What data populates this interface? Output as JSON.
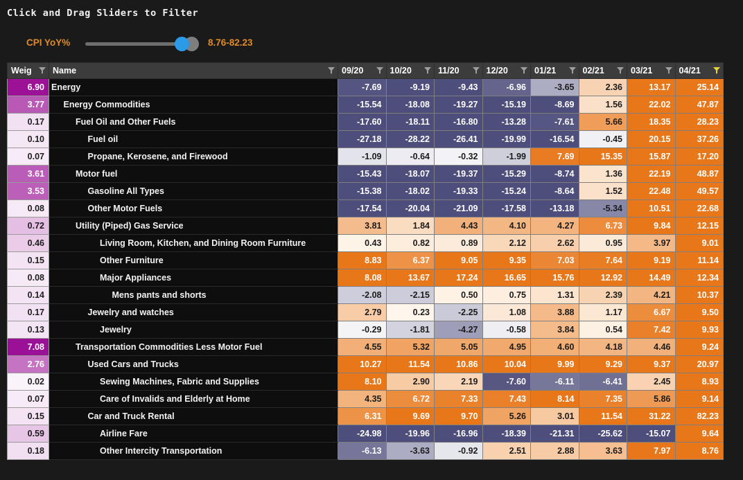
{
  "title": "Click and Drag Sliders to Filter",
  "slider": {
    "label": "CPI YoY%",
    "range_label": "8.76-82.23",
    "handles": [
      "blue-handle",
      "gray-handle"
    ]
  },
  "colors": {
    "page_bg": "#1a1a1a",
    "accent_orange_text": "#e18a28",
    "slider_blue": "#2b9be8",
    "slider_gray": "#7e7e7e",
    "header_bg": "#3c3c3c",
    "positive_max": "#e8771c",
    "negative_max": "#4e4e7c",
    "weight_max": "#9a1096",
    "active_filter_yellow": "#e9d23d",
    "inactive_filter_gray": "#9e9e9e"
  },
  "icons": {
    "filter": "funnel"
  },
  "table": {
    "weight_header": "Weig",
    "name_header": "Name",
    "months": [
      "09/20",
      "10/20",
      "11/20",
      "12/20",
      "01/21",
      "02/21",
      "03/21",
      "04/21"
    ],
    "active_filter_month": "04/21",
    "rows": [
      {
        "weight": 6.9,
        "name": "Energy",
        "indent": 0,
        "values": [
          -7.69,
          -9.19,
          -9.43,
          -6.96,
          -3.65,
          2.36,
          13.17,
          25.14
        ]
      },
      {
        "weight": 3.77,
        "name": "Energy Commodities",
        "indent": 1,
        "values": [
          -15.54,
          -18.08,
          -19.27,
          -15.19,
          -8.69,
          1.56,
          22.02,
          47.87
        ]
      },
      {
        "weight": 0.17,
        "name": "Fuel Oil and Other Fuels",
        "indent": 2,
        "values": [
          -17.6,
          -18.11,
          -16.8,
          -13.28,
          -7.61,
          5.66,
          18.35,
          28.23
        ]
      },
      {
        "weight": 0.1,
        "name": "Fuel oil",
        "indent": 3,
        "values": [
          -27.18,
          -28.22,
          -26.41,
          -19.99,
          -16.54,
          -0.45,
          20.15,
          37.26
        ]
      },
      {
        "weight": 0.07,
        "name": "Propane, Kerosene, and Firewood",
        "indent": 3,
        "values": [
          -1.09,
          -0.64,
          -0.32,
          -1.99,
          7.69,
          15.35,
          15.87,
          17.2
        ]
      },
      {
        "weight": 3.61,
        "name": "Motor fuel",
        "indent": 2,
        "values": [
          -15.43,
          -18.07,
          -19.37,
          -15.29,
          -8.74,
          1.36,
          22.19,
          48.87
        ]
      },
      {
        "weight": 3.53,
        "name": "Gasoline All Types",
        "indent": 3,
        "values": [
          -15.38,
          -18.02,
          -19.33,
          -15.24,
          -8.64,
          1.52,
          22.48,
          49.57
        ]
      },
      {
        "weight": 0.08,
        "name": "Other Motor Fuels",
        "indent": 3,
        "values": [
          -17.54,
          -20.04,
          -21.09,
          -17.58,
          -13.18,
          -5.34,
          10.51,
          22.68
        ]
      },
      {
        "weight": 0.72,
        "name": "Utility (Piped) Gas Service",
        "indent": 2,
        "values": [
          3.81,
          1.84,
          4.43,
          4.1,
          4.27,
          6.73,
          9.84,
          12.15
        ]
      },
      {
        "weight": 0.46,
        "name": "Living Room, Kitchen, and Dining Room Furniture",
        "indent": 4,
        "values": [
          0.43,
          0.82,
          0.89,
          2.12,
          2.62,
          0.95,
          3.97,
          9.01
        ]
      },
      {
        "weight": 0.15,
        "name": "Other Furniture",
        "indent": 4,
        "values": [
          8.83,
          6.37,
          9.05,
          9.35,
          7.03,
          7.64,
          9.19,
          11.14
        ]
      },
      {
        "weight": 0.08,
        "name": "Major Appliances",
        "indent": 4,
        "values": [
          8.08,
          13.67,
          17.24,
          16.65,
          15.76,
          12.92,
          14.49,
          12.34
        ]
      },
      {
        "weight": 0.14,
        "name": "Mens pants and shorts",
        "indent": 5,
        "values": [
          -2.08,
          -2.15,
          0.5,
          0.75,
          1.31,
          2.39,
          4.21,
          10.37
        ]
      },
      {
        "weight": 0.17,
        "name": "Jewelry and watches",
        "indent": 3,
        "values": [
          2.79,
          0.23,
          -2.25,
          1.08,
          3.88,
          1.17,
          6.67,
          9.5
        ]
      },
      {
        "weight": 0.13,
        "name": "Jewelry",
        "indent": 4,
        "values": [
          -0.29,
          -1.81,
          -4.27,
          -0.58,
          3.84,
          0.54,
          7.42,
          9.93
        ]
      },
      {
        "weight": 7.08,
        "name": "Transportation Commodities Less Motor Fuel",
        "indent": 2,
        "values": [
          4.55,
          5.32,
          5.05,
          4.95,
          4.6,
          4.18,
          4.46,
          9.24
        ]
      },
      {
        "weight": 2.76,
        "name": "Used Cars and Trucks",
        "indent": 3,
        "values": [
          10.27,
          11.54,
          10.86,
          10.04,
          9.99,
          9.29,
          9.37,
          20.97
        ]
      },
      {
        "weight": 0.02,
        "name": "Sewing Machines, Fabric and Supplies",
        "indent": 4,
        "values": [
          8.1,
          2.9,
          2.19,
          -7.6,
          -6.11,
          -6.41,
          2.45,
          8.93
        ]
      },
      {
        "weight": 0.07,
        "name": "Care of Invalids and Elderly at Home",
        "indent": 4,
        "values": [
          4.35,
          6.72,
          7.33,
          7.43,
          8.14,
          7.35,
          5.86,
          9.14
        ]
      },
      {
        "weight": 0.15,
        "name": "Car and Truck Rental",
        "indent": 3,
        "values": [
          6.31,
          9.69,
          9.7,
          5.26,
          3.01,
          11.54,
          31.22,
          82.23
        ]
      },
      {
        "weight": 0.59,
        "name": "Airline Fare",
        "indent": 4,
        "values": [
          -24.98,
          -19.96,
          -16.96,
          -18.39,
          -21.31,
          -25.62,
          -15.07,
          9.64
        ]
      },
      {
        "weight": 0.18,
        "name": "Other Intercity Transportation",
        "indent": 4,
        "values": [
          -6.13,
          -3.63,
          -0.92,
          2.51,
          2.88,
          3.63,
          7.97,
          8.76
        ]
      }
    ]
  }
}
